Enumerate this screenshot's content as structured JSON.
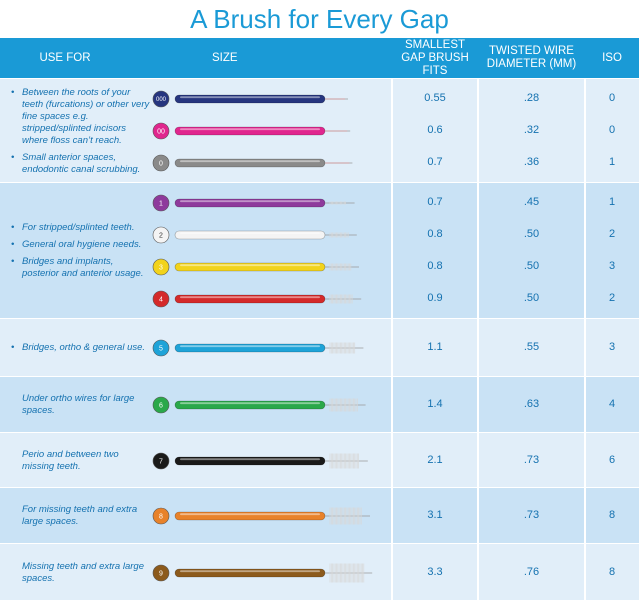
{
  "title": "A Brush for Every Gap",
  "header": [
    "USE FOR",
    "SIZE",
    "SMALLEST GAP BRUSH FITS",
    "TWISTED WIRE DIAMETER (MM)",
    "ISO"
  ],
  "groups": [
    {
      "bulleted": true,
      "uses": [
        "Between the roots of your teeth (furcations) or other very fine spaces e.g. stripped/splinted incisors where floss can’t reach.",
        "Small anterior spaces, endodontic canal scrubbing."
      ],
      "brushes": [
        {
          "size": "000",
          "color": "#26357f",
          "gap": "0.55",
          "wire": ".28",
          "iso": "0"
        },
        {
          "size": "00",
          "color": "#e0268e",
          "gap": "0.6",
          "wire": ".32",
          "iso": "0"
        },
        {
          "size": "0",
          "color": "#8a8a8a",
          "gap": "0.7",
          "wire": ".36",
          "iso": "1"
        }
      ]
    },
    {
      "bulleted": true,
      "uses": [
        "For stripped/splinted teeth.",
        "General oral hygiene needs.",
        "Bridges and implants, posterior and anterior usage."
      ],
      "brushes": [
        {
          "size": "1",
          "color": "#8e3a9c",
          "gap": "0.7",
          "wire": ".45",
          "iso": "1"
        },
        {
          "size": "2",
          "color": "#f4f4f4",
          "gap": "0.8",
          "wire": ".50",
          "iso": "2"
        },
        {
          "size": "3",
          "color": "#f2d31b",
          "gap": "0.8",
          "wire": ".50",
          "iso": "3"
        },
        {
          "size": "4",
          "color": "#d42a2a",
          "gap": "0.9",
          "wire": ".50",
          "iso": "2"
        }
      ]
    },
    {
      "bulleted": true,
      "uses": [
        "Bridges, ortho & general use."
      ],
      "brushes": [
        {
          "size": "5",
          "color": "#1ea3d8",
          "gap": "1.1",
          "wire": ".55",
          "iso": "3"
        }
      ]
    },
    {
      "bulleted": false,
      "uses": [
        "Under ortho wires for large spaces."
      ],
      "brushes": [
        {
          "size": "6",
          "color": "#2aa84a",
          "gap": "1.4",
          "wire": ".63",
          "iso": "4"
        }
      ]
    },
    {
      "bulleted": false,
      "uses": [
        "Perio and between two missing teeth."
      ],
      "brushes": [
        {
          "size": "7",
          "color": "#1a1a1a",
          "gap": "2.1",
          "wire": ".73",
          "iso": "6"
        }
      ]
    },
    {
      "bulleted": false,
      "uses": [
        "For missing teeth and extra large spaces."
      ],
      "brushes": [
        {
          "size": "8",
          "color": "#e8822a",
          "gap": "3.1",
          "wire": ".73",
          "iso": "8"
        }
      ]
    },
    {
      "bulleted": false,
      "uses": [
        "Missing teeth and extra large spaces."
      ],
      "brushes": [
        {
          "size": "9",
          "color": "#8c5a1c",
          "gap": "3.3",
          "wire": ".76",
          "iso": "8"
        }
      ]
    }
  ]
}
